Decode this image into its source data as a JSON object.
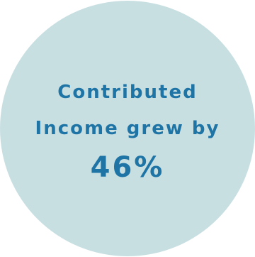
{
  "stat": {
    "line1": "Contributed",
    "line2": "Income grew by",
    "value": "46%"
  },
  "colors": {
    "circle": "#c8dfe2",
    "text": "#1f74a6",
    "background": "#ffffff"
  }
}
